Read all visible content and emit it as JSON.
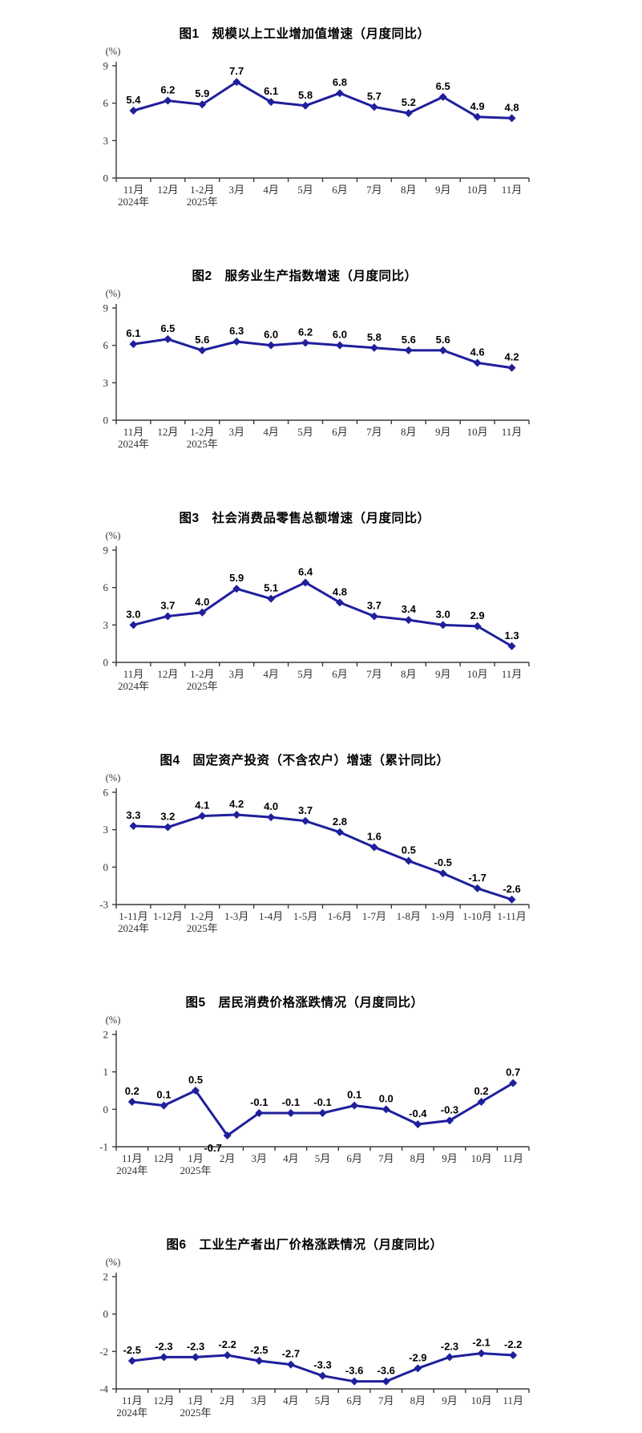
{
  "page": {
    "background": "#ffffff"
  },
  "colors": {
    "line": "#1f1f9c",
    "marker": "#1f1f9c",
    "value_label": "#000000",
    "axis": "#3a3a3a",
    "tick_text": "#333333",
    "title_text": "#000000"
  },
  "chart_data": [
    {
      "type": "line",
      "title": "图1　规模以上工业增加值增速（月度同比）",
      "unit_label": "(%)",
      "categories": [
        "11月",
        "12月",
        "1-2月",
        "3月",
        "4月",
        "5月",
        "6月",
        "7月",
        "8月",
        "9月",
        "10月",
        "11月"
      ],
      "year_labels": [
        {
          "index": 0,
          "text": "2024年"
        },
        {
          "index": 2,
          "text": "2025年"
        }
      ],
      "values": [
        5.4,
        6.2,
        5.9,
        7.7,
        6.1,
        5.8,
        6.8,
        5.7,
        5.2,
        6.5,
        4.9,
        4.8
      ],
      "ylim": [
        0,
        9
      ],
      "yticks": [
        0,
        3,
        6,
        9
      ],
      "grid": false,
      "legend": "none",
      "label_offsets": {}
    },
    {
      "type": "line",
      "title": "图2　服务业生产指数增速（月度同比）",
      "unit_label": "(%)",
      "categories": [
        "11月",
        "12月",
        "1-2月",
        "3月",
        "4月",
        "5月",
        "6月",
        "7月",
        "8月",
        "9月",
        "10月",
        "11月"
      ],
      "year_labels": [
        {
          "index": 0,
          "text": "2024年"
        },
        {
          "index": 2,
          "text": "2025年"
        }
      ],
      "values": [
        6.1,
        6.5,
        5.6,
        6.3,
        6.0,
        6.2,
        6.0,
        5.8,
        5.6,
        5.6,
        4.6,
        4.2
      ],
      "ylim": [
        0,
        9
      ],
      "yticks": [
        0,
        3,
        6,
        9
      ],
      "grid": false,
      "legend": "none",
      "label_offsets": {}
    },
    {
      "type": "line",
      "title": "图3　社会消费品零售总额增速（月度同比）",
      "unit_label": "(%)",
      "categories": [
        "11月",
        "12月",
        "1-2月",
        "3月",
        "4月",
        "5月",
        "6月",
        "7月",
        "8月",
        "9月",
        "10月",
        "11月"
      ],
      "year_labels": [
        {
          "index": 0,
          "text": "2024年"
        },
        {
          "index": 2,
          "text": "2025年"
        }
      ],
      "values": [
        3.0,
        3.7,
        4.0,
        5.9,
        5.1,
        6.4,
        4.8,
        3.7,
        3.4,
        3.0,
        2.9,
        1.3
      ],
      "ylim": [
        0,
        9
      ],
      "yticks": [
        0,
        3,
        6,
        9
      ],
      "grid": false,
      "legend": "none",
      "label_offsets": {}
    },
    {
      "type": "line",
      "title": "图4　固定资产投资（不含农户）增速（累计同比）",
      "unit_label": "(%)",
      "categories": [
        "1-11月",
        "1-12月",
        "1-2月",
        "1-3月",
        "1-4月",
        "1-5月",
        "1-6月",
        "1-7月",
        "1-8月",
        "1-9月",
        "1-10月",
        "1-11月"
      ],
      "year_labels": [
        {
          "index": 0,
          "text": "2024年"
        },
        {
          "index": 2,
          "text": "2025年"
        }
      ],
      "values": [
        3.3,
        3.2,
        4.1,
        4.2,
        4.0,
        3.7,
        2.8,
        1.6,
        0.5,
        -0.5,
        -1.7,
        -2.6
      ],
      "ylim": [
        -3,
        6
      ],
      "yticks": [
        -3,
        0,
        3,
        6
      ],
      "grid": false,
      "legend": "none",
      "label_offsets": {}
    },
    {
      "type": "line",
      "title": "图5　居民消费价格涨跌情况（月度同比）",
      "unit_label": "(%)",
      "categories": [
        "11月",
        "12月",
        "1月",
        "2月",
        "3月",
        "4月",
        "5月",
        "6月",
        "7月",
        "8月",
        "9月",
        "10月",
        "11月"
      ],
      "year_labels": [
        {
          "index": 0,
          "text": "2024年"
        },
        {
          "index": 2,
          "text": "2025年"
        }
      ],
      "values": [
        0.2,
        0.1,
        0.5,
        -0.7,
        -0.1,
        -0.1,
        -0.1,
        0.1,
        0.0,
        -0.4,
        -0.3,
        0.2,
        0.7
      ],
      "ylim": [
        -1,
        2
      ],
      "yticks": [
        -1,
        0,
        1,
        2
      ],
      "grid": false,
      "legend": "none",
      "label_offsets": {
        "3": [
          -18,
          20
        ]
      }
    },
    {
      "type": "line",
      "title": "图6　工业生产者出厂价格涨跌情况（月度同比）",
      "unit_label": "(%)",
      "categories": [
        "11月",
        "12月",
        "1月",
        "2月",
        "3月",
        "4月",
        "5月",
        "6月",
        "7月",
        "8月",
        "9月",
        "10月",
        "11月"
      ],
      "year_labels": [
        {
          "index": 0,
          "text": "2024年"
        },
        {
          "index": 2,
          "text": "2025年"
        }
      ],
      "values": [
        -2.5,
        -2.3,
        -2.3,
        -2.2,
        -2.5,
        -2.7,
        -3.3,
        -3.6,
        -3.6,
        -2.9,
        -2.3,
        -2.1,
        -2.2
      ],
      "ylim": [
        -4,
        2
      ],
      "yticks": [
        -4,
        -2,
        0,
        2
      ],
      "grid": false,
      "legend": "none",
      "label_offsets": {}
    }
  ]
}
